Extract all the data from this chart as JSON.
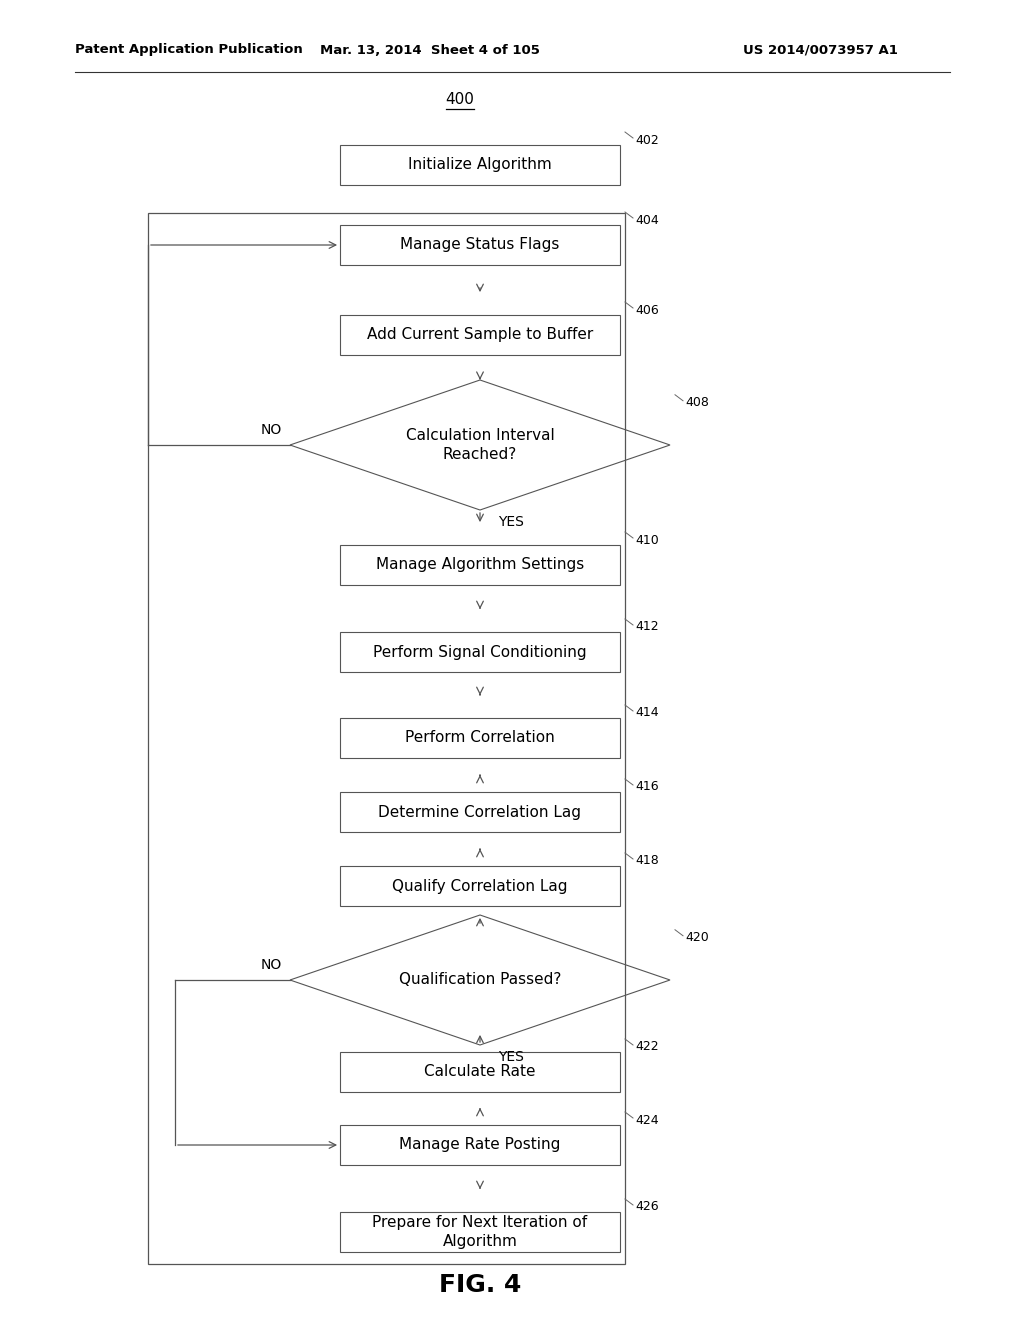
{
  "header_left": "Patent Application Publication",
  "header_mid": "Mar. 13, 2014  Sheet 4 of 105",
  "header_right": "US 2014/0073957 A1",
  "fig_label": "FIG. 4",
  "diagram_label": "400",
  "boxes": [
    {
      "id": "402",
      "label": "Initialize Algorithm",
      "type": "rect"
    },
    {
      "id": "404",
      "label": "Manage Status Flags",
      "type": "rect"
    },
    {
      "id": "406",
      "label": "Add Current Sample to Buffer",
      "type": "rect"
    },
    {
      "id": "408",
      "label": "Calculation Interval\nReached?",
      "type": "diamond"
    },
    {
      "id": "410",
      "label": "Manage Algorithm Settings",
      "type": "rect"
    },
    {
      "id": "412",
      "label": "Perform Signal Conditioning",
      "type": "rect"
    },
    {
      "id": "414",
      "label": "Perform Correlation",
      "type": "rect"
    },
    {
      "id": "416",
      "label": "Determine Correlation Lag",
      "type": "rect"
    },
    {
      "id": "418",
      "label": "Qualify Correlation Lag",
      "type": "rect"
    },
    {
      "id": "420",
      "label": "Qualification Passed?",
      "type": "diamond"
    },
    {
      "id": "422",
      "label": "Calculate Rate",
      "type": "rect"
    },
    {
      "id": "424",
      "label": "Manage Rate Posting",
      "type": "rect"
    },
    {
      "id": "426",
      "label": "Prepare for Next Iteration of\nAlgorithm",
      "type": "rect"
    }
  ],
  "bg_color": "#ffffff",
  "box_edge_color": "#555555",
  "text_color": "#000000",
  "arrow_color": "#555555",
  "font_size": 11,
  "header_font_size": 10
}
